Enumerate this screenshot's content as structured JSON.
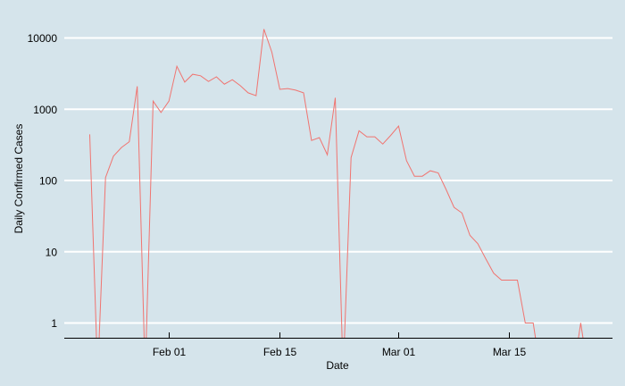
{
  "chart_data": {
    "type": "line",
    "title": "",
    "xlabel": "Date",
    "ylabel": "Daily Confirmed Cases",
    "y_scale": "log10",
    "y_ticks": [
      1,
      10,
      100,
      1000,
      10000
    ],
    "y_tick_labels": [
      "1",
      "10",
      "100",
      "1000",
      "10000"
    ],
    "x_ticks": [
      "Feb 01",
      "Feb 15",
      "Mar 01",
      "Mar 15"
    ],
    "ylim": [
      0.6,
      21000
    ],
    "grid": {
      "horizontal": true,
      "vertical": false
    },
    "legend": "none",
    "colors": {
      "background": "#d5e4eb",
      "grid": "#ffffff",
      "line": "#f07470",
      "axis": "#000000"
    },
    "series": [
      {
        "name": "Daily Confirmed Cases",
        "x": [
          "Jan 22",
          "Jan 23",
          "Jan 24",
          "Jan 25",
          "Jan 26",
          "Jan 27",
          "Jan 28",
          "Jan 29",
          "Jan 30",
          "Jan 31",
          "Feb 01",
          "Feb 02",
          "Feb 03",
          "Feb 04",
          "Feb 05",
          "Feb 06",
          "Feb 07",
          "Feb 08",
          "Feb 09",
          "Feb 10",
          "Feb 11",
          "Feb 12",
          "Feb 13",
          "Feb 14",
          "Feb 15",
          "Feb 16",
          "Feb 17",
          "Feb 18",
          "Feb 19",
          "Feb 20",
          "Feb 21",
          "Feb 22",
          "Feb 23",
          "Feb 24",
          "Feb 25",
          "Feb 26",
          "Feb 27",
          "Feb 28",
          "Feb 29",
          "Mar 01",
          "Mar 02",
          "Mar 03",
          "Mar 04",
          "Mar 05",
          "Mar 06",
          "Mar 07",
          "Mar 08",
          "Mar 09",
          "Mar 10",
          "Mar 11",
          "Mar 12",
          "Mar 13",
          "Mar 14",
          "Mar 15",
          "Mar 16",
          "Mar 17",
          "Mar 18",
          "Mar 19",
          "Mar 20",
          "Mar 21",
          "Mar 22",
          "Mar 23",
          "Mar 24",
          "Mar 25"
        ],
        "values": [
          444,
          0,
          110,
          220,
          290,
          350,
          2100,
          0,
          1300,
          900,
          1300,
          4000,
          2400,
          3100,
          2950,
          2450,
          2850,
          2250,
          2600,
          2150,
          1700,
          1550,
          13300,
          6300,
          1900,
          1950,
          1850,
          1700,
          365,
          400,
          230,
          1450,
          0,
          210,
          500,
          410,
          410,
          325,
          430,
          580,
          190,
          115,
          115,
          137,
          128,
          75,
          42,
          35,
          17,
          13,
          8,
          5,
          4,
          4,
          4,
          1,
          1,
          0,
          0,
          0,
          0,
          0,
          1,
          0
        ]
      }
    ]
  }
}
